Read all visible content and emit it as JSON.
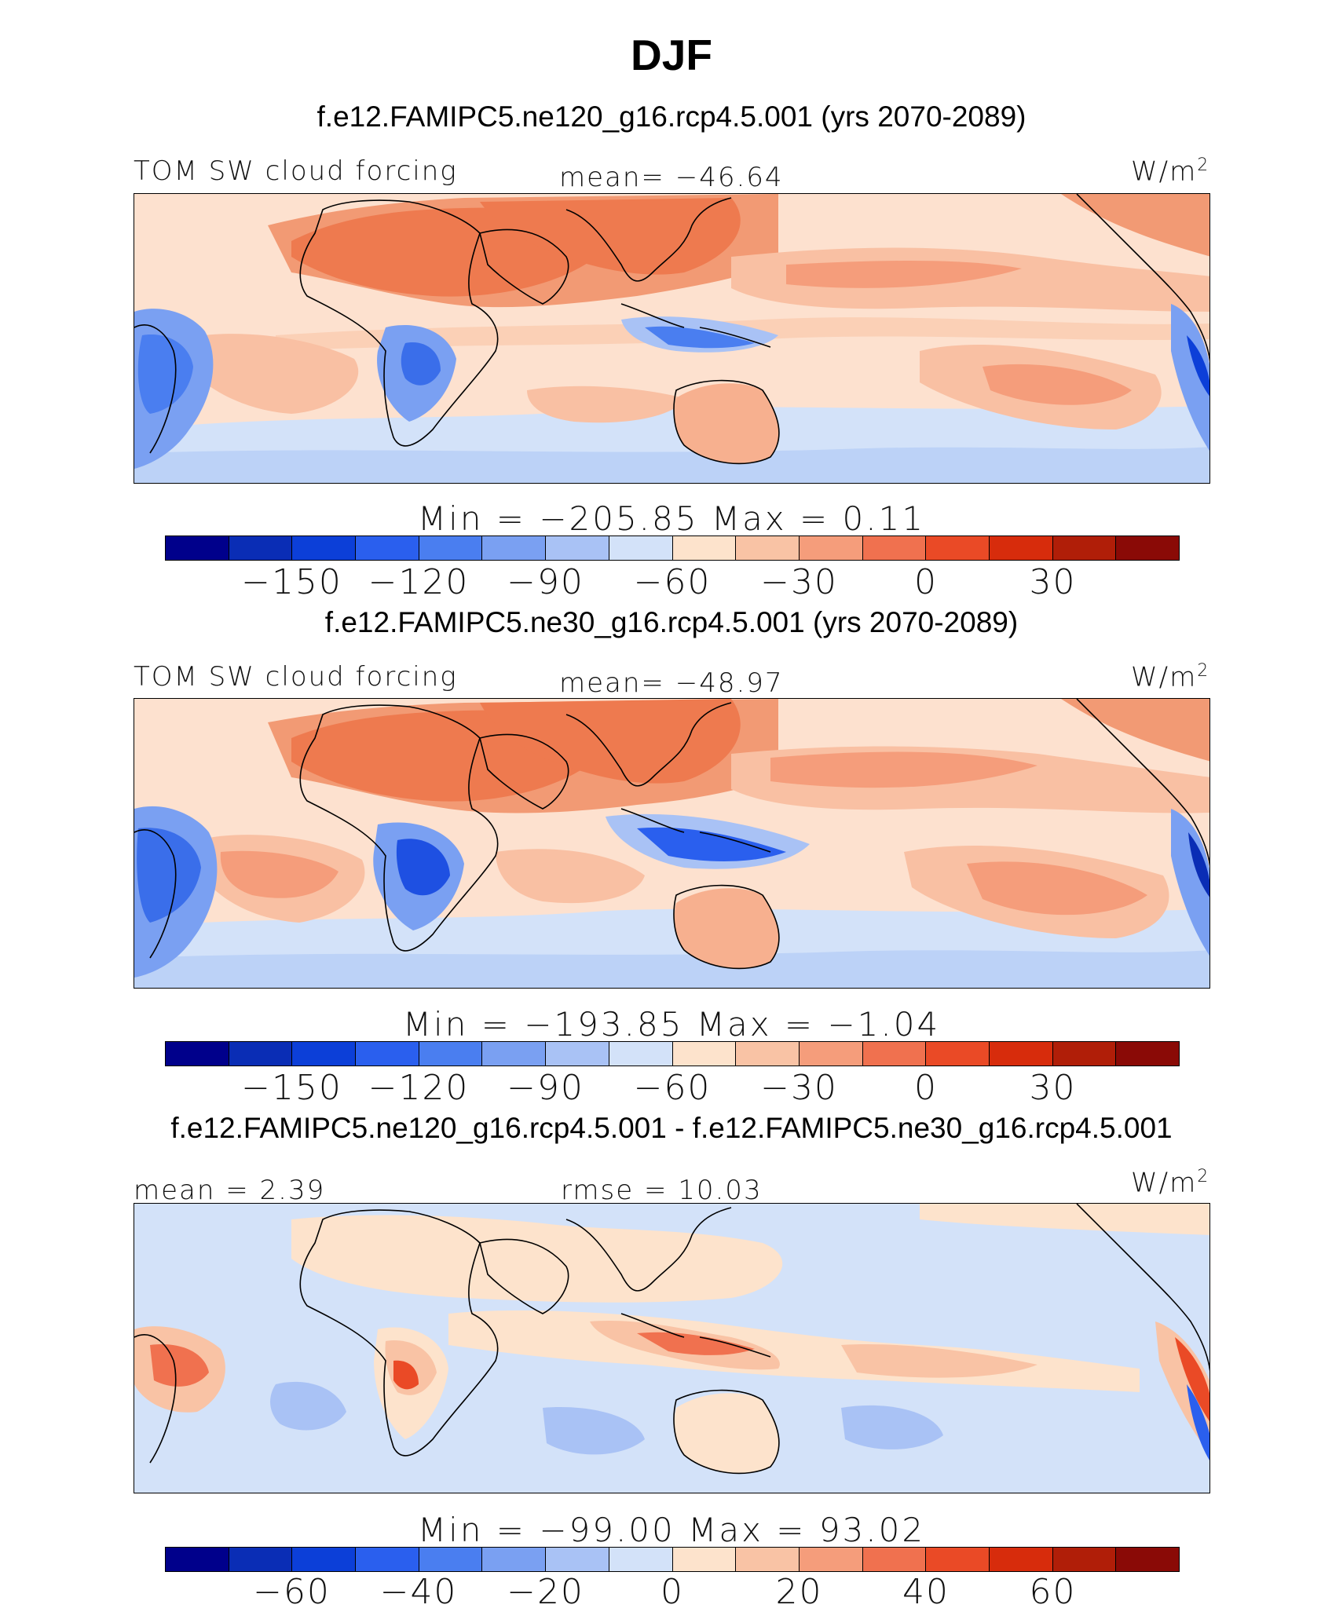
{
  "title": "DJF",
  "panels": [
    {
      "case": "f.e12.FAMIPC5.ne120_g16.rcp4.5.001 (yrs 2070-2089)",
      "variable": "TOM SW cloud forcing",
      "stat_center": "mean= −46.64",
      "units": "W/m",
      "units_sup": "2",
      "minmax": "Min = −205.85  Max =    0.11",
      "colorbar_ticks": [
        "−150",
        "−120",
        "−90",
        "−60",
        "−30",
        "0",
        "30"
      ],
      "colorbar_colors": [
        "#00008b",
        "#0a2db5",
        "#0c3fd8",
        "#2a5fee",
        "#4a7ef0",
        "#7aa0f2",
        "#a9c2f5",
        "#d3e2f9",
        "#fde3cc",
        "#f9c3a5",
        "#f59d7b",
        "#f0714f",
        "#ea4a26",
        "#d72c0c",
        "#b01e08",
        "#8a0a06"
      ],
      "contour_interval": 15,
      "first_level": -165
    },
    {
      "case": "f.e12.FAMIPC5.ne30_g16.rcp4.5.001 (yrs 2070-2089)",
      "variable": "TOM SW cloud forcing",
      "stat_center": "mean= −48.97",
      "units": "W/m",
      "units_sup": "2",
      "minmax": "Min = −193.85  Max =   −1.04",
      "colorbar_ticks": [
        "−150",
        "−120",
        "−90",
        "−60",
        "−30",
        "0",
        "30"
      ],
      "colorbar_colors": [
        "#00008b",
        "#0a2db5",
        "#0c3fd8",
        "#2a5fee",
        "#4a7ef0",
        "#7aa0f2",
        "#a9c2f5",
        "#d3e2f9",
        "#fde3cc",
        "#f9c3a5",
        "#f59d7b",
        "#f0714f",
        "#ea4a26",
        "#d72c0c",
        "#b01e08",
        "#8a0a06"
      ],
      "contour_interval": 15,
      "first_level": -165
    },
    {
      "case": "f.e12.FAMIPC5.ne120_g16.rcp4.5.001 - f.e12.FAMIPC5.ne30_g16.rcp4.5.001",
      "stat_left": "mean =    2.39",
      "stat_center": "rmse =   10.03",
      "units": "W/m",
      "units_sup": "2",
      "minmax": "Min = −99.00  Max =   93.02",
      "colorbar_ticks": [
        "−60",
        "−40",
        "−20",
        "0",
        "20",
        "40",
        "60"
      ],
      "colorbar_colors": [
        "#00008b",
        "#0a2db5",
        "#0c3fd8",
        "#2a5fee",
        "#4a7ef0",
        "#7aa0f2",
        "#a9c2f5",
        "#d3e2f9",
        "#fde3cc",
        "#f9c3a5",
        "#f59d7b",
        "#f0714f",
        "#ea4a26",
        "#d72c0c",
        "#b01e08",
        "#8a0a06"
      ],
      "contour_interval": 10,
      "first_level": -70
    }
  ]
}
